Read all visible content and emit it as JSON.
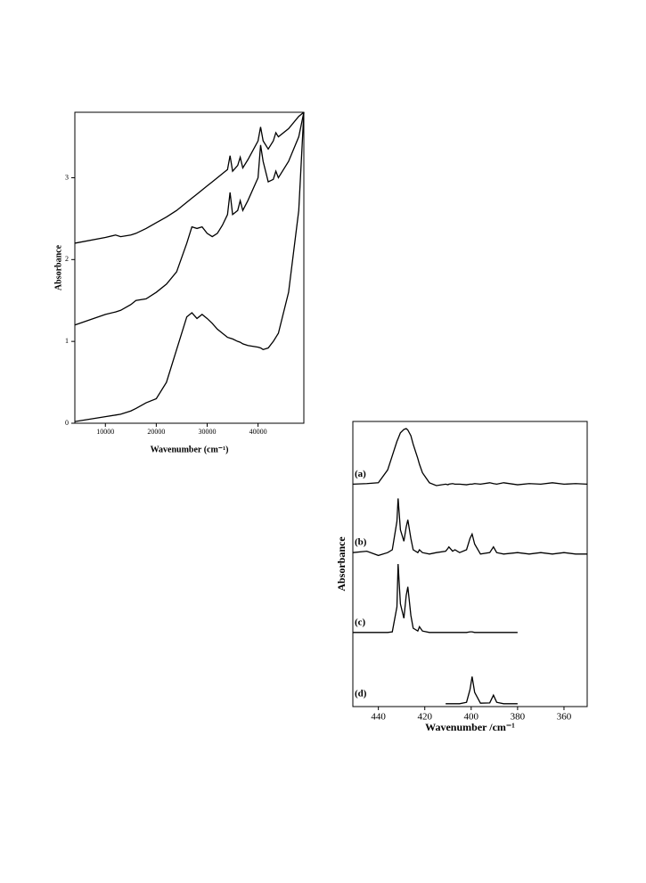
{
  "chart_data": [
    {
      "type": "line",
      "x_label": "Wavenumber (cm⁻¹)",
      "y_label": "Absorbance",
      "xlim": [
        4000,
        49000
      ],
      "ylim": [
        0,
        3.8
      ],
      "xticks": [
        10000,
        20000,
        30000,
        40000
      ],
      "yticks": [
        0,
        1,
        2,
        3
      ],
      "color": "#000000",
      "x": [
        4000,
        10000,
        12000,
        13000,
        15000,
        16000,
        18000,
        20000,
        22000,
        24000,
        26000,
        27000,
        28000,
        29000,
        30000,
        31000,
        32000,
        33000,
        34000,
        34500,
        35000,
        36000,
        36500,
        37000,
        38000,
        40000,
        40500,
        41000,
        42000,
        43000,
        43500,
        44000,
        46000,
        48000,
        49000
      ],
      "series": [
        {
          "values": [
            0.02,
            0.08,
            0.1,
            0.11,
            0.15,
            0.18,
            0.25,
            0.3,
            0.5,
            0.9,
            1.3,
            1.35,
            1.28,
            1.33,
            1.28,
            1.22,
            1.15,
            1.1,
            1.05,
            1.04,
            1.03,
            1.0,
            0.99,
            0.97,
            0.95,
            0.93,
            0.92,
            0.9,
            0.92,
            1.0,
            1.05,
            1.1,
            1.6,
            2.6,
            3.8
          ]
        },
        {
          "values": [
            1.2,
            1.33,
            1.36,
            1.38,
            1.45,
            1.5,
            1.52,
            1.6,
            1.7,
            1.85,
            2.2,
            2.4,
            2.38,
            2.4,
            2.32,
            2.28,
            2.32,
            2.42,
            2.55,
            2.82,
            2.55,
            2.6,
            2.72,
            2.6,
            2.72,
            3.0,
            3.4,
            3.2,
            2.95,
            2.98,
            3.08,
            3.0,
            3.2,
            3.5,
            3.8
          ]
        },
        {
          "values": [
            2.2,
            2.27,
            2.3,
            2.28,
            2.3,
            2.32,
            2.38,
            2.45,
            2.52,
            2.6,
            2.7,
            2.75,
            2.8,
            2.85,
            2.9,
            2.95,
            3.0,
            3.05,
            3.1,
            3.27,
            3.08,
            3.15,
            3.25,
            3.12,
            3.22,
            3.45,
            3.62,
            3.45,
            3.35,
            3.45,
            3.55,
            3.5,
            3.6,
            3.75,
            3.8
          ]
        }
      ]
    },
    {
      "type": "line",
      "x_label": "Wavenumber /cm⁻¹",
      "y_label": "Absorbance",
      "xlim": [
        451,
        350
      ],
      "ylim": [
        0,
        10
      ],
      "xticks": [
        440,
        420,
        400,
        380,
        360
      ],
      "color": "#000000",
      "x": [
        451,
        445,
        440,
        436,
        434,
        432,
        431.5,
        430.5,
        429,
        428,
        427.3,
        426,
        425,
        423,
        422.3,
        421,
        418,
        415,
        411,
        410,
        409.6,
        408,
        407,
        405,
        402,
        400.5,
        399.6,
        398.5,
        396,
        392,
        390.4,
        389,
        386,
        380,
        375,
        370,
        365,
        360,
        355,
        350
      ],
      "series": [
        {
          "name": "(a)",
          "values": [
            7.8,
            7.82,
            7.85,
            8.3,
            8.8,
            9.3,
            9.4,
            9.6,
            9.72,
            9.75,
            9.7,
            9.5,
            9.2,
            8.7,
            8.5,
            8.2,
            7.85,
            7.75,
            7.8,
            7.78,
            7.8,
            7.82,
            7.8,
            7.8,
            7.78,
            7.8,
            7.8,
            7.82,
            7.8,
            7.85,
            7.82,
            7.8,
            7.85,
            7.78,
            7.82,
            7.8,
            7.85,
            7.8,
            7.82,
            7.8
          ]
        },
        {
          "name": "(b)",
          "values": [
            5.4,
            5.45,
            5.3,
            5.4,
            5.5,
            6.5,
            7.3,
            6.2,
            5.8,
            6.3,
            6.55,
            5.9,
            5.5,
            5.4,
            5.5,
            5.4,
            5.35,
            5.4,
            5.45,
            5.55,
            5.6,
            5.45,
            5.5,
            5.4,
            5.5,
            5.9,
            6.05,
            5.7,
            5.35,
            5.4,
            5.6,
            5.4,
            5.35,
            5.4,
            5.35,
            5.4,
            5.35,
            5.4,
            5.35,
            5.35
          ]
        },
        {
          "name": "(c)",
          "values": [
            2.6,
            2.6,
            2.6,
            2.6,
            2.62,
            3.5,
            5.0,
            3.6,
            3.1,
            3.9,
            4.2,
            3.2,
            2.75,
            2.65,
            2.8,
            2.65,
            2.6,
            2.6,
            2.6,
            2.6,
            2.6,
            2.6,
            2.6,
            2.6,
            2.6,
            2.62,
            2.62,
            2.6,
            2.6,
            2.6,
            2.6,
            2.6,
            2.6,
            2.6,
            null,
            null,
            null,
            null,
            null,
            null
          ]
        },
        {
          "name": "(d)",
          "values": [
            null,
            null,
            null,
            null,
            null,
            null,
            null,
            null,
            null,
            null,
            null,
            null,
            null,
            null,
            null,
            null,
            null,
            null,
            0.1,
            0.1,
            0.1,
            0.1,
            0.1,
            0.1,
            0.15,
            0.6,
            1.05,
            0.5,
            0.12,
            0.13,
            0.4,
            0.15,
            0.1,
            0.1,
            null,
            null,
            null,
            null,
            null,
            null
          ]
        }
      ]
    }
  ]
}
